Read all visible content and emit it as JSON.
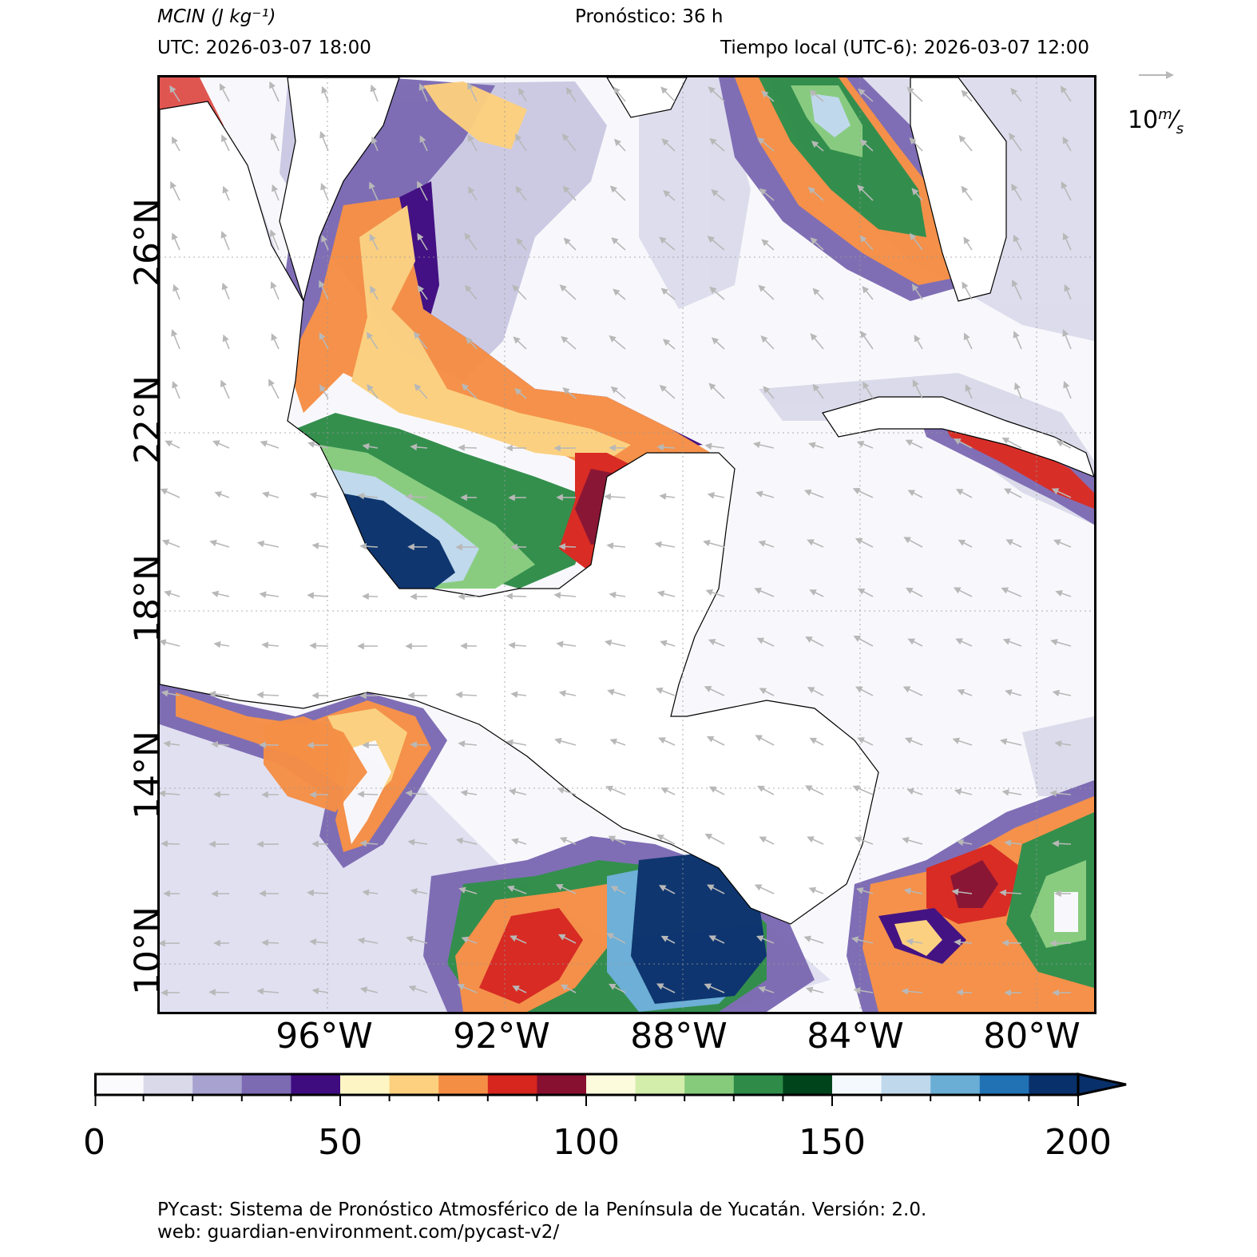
{
  "header": {
    "variable": "MCIN (J kg⁻¹)",
    "forecast": "Pronóstico: 36 h",
    "utc": "UTC:  2026-03-07 18:00",
    "local": "Tiempo local (UTC-6): 2026-03-07 12:00"
  },
  "map": {
    "lat_labels": [
      "26°N",
      "22°N",
      "18°N",
      "14°N",
      "10°N"
    ],
    "lon_labels": [
      "96°W",
      "92°W",
      "88°W",
      "84°W",
      "80°W"
    ],
    "wind_vector_reference": {
      "value": "10",
      "unit_num": "m",
      "unit_den": "s"
    },
    "land_color": "#ffffff",
    "ocean_base_color": "#f8f8fc"
  },
  "colorbar": {
    "min": 0,
    "max": 200,
    "extend": "max",
    "tick_labels": [
      "0",
      "50",
      "100",
      "150",
      "200"
    ],
    "colors": [
      "#fbfbfd",
      "#d9d9ea",
      "#a7a2cf",
      "#7c6ab3",
      "#3f0c80",
      "#fdf6c4",
      "#fcd07e",
      "#f58e45",
      "#d7261e",
      "#870f2f",
      "#fcfbdc",
      "#d3edaa",
      "#86cb7c",
      "#2e8c48",
      "#00441b",
      "#f4f9fd",
      "#bfd8ec",
      "#6aaed6",
      "#2171b5",
      "#08306b"
    ],
    "extend_color": "#08306b"
  },
  "footer": {
    "line1": "PYcast: Sistema de Pronóstico Atmosférico de la Península de Yucatán. Versión: 2.0.",
    "line2": "web: guardian-environment.com/pycast-v2/"
  }
}
